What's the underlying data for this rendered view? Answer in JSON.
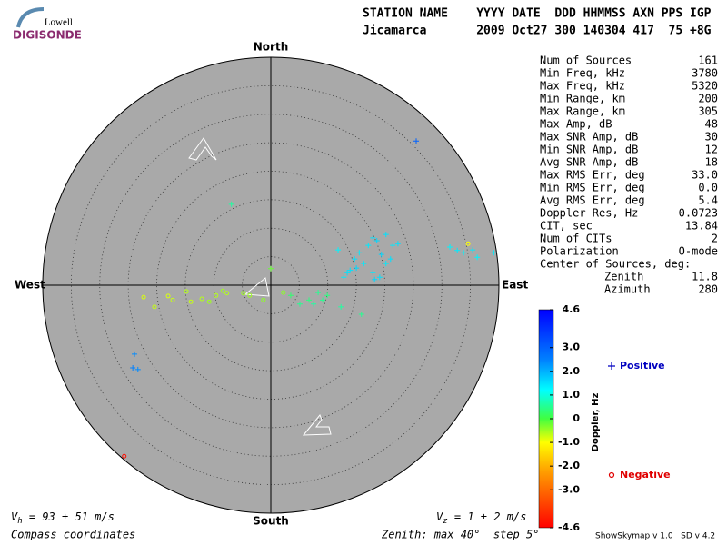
{
  "chart_data": {
    "type": "skymap",
    "logo": {
      "top": "Lowell",
      "bottom": "DIGISONDE"
    },
    "header": [
      "STATION NAME    YYYY DATE  DDD HHMMSS AXN PPS IGP",
      "Jicamarca       2009 Oct27 300 140304 417  75 +8G"
    ],
    "directions": {
      "north": "North",
      "south": "South",
      "west": "West",
      "east": "East"
    },
    "zenith_max": 40,
    "zenith_step": 5,
    "background": "#a9a9a9",
    "stats": [
      [
        "Num of Sources",
        "161"
      ],
      [
        "Min Freq, kHz",
        "3780"
      ],
      [
        "Max Freq, kHz",
        "5320"
      ],
      [
        "Min Range, km",
        "200"
      ],
      [
        "Max Range, km",
        "305"
      ],
      [
        "Max Amp, dB",
        "48"
      ],
      [
        "Max SNR Amp, dB",
        "30"
      ],
      [
        "Min SNR Amp, dB",
        "12"
      ],
      [
        "Avg SNR Amp, dB",
        "18"
      ],
      [
        "Max RMS Err, deg",
        "33.0"
      ],
      [
        "Min RMS Err, deg",
        "0.0"
      ],
      [
        "Avg RMS Err, deg",
        "5.4"
      ],
      [
        "Doppler Res, Hz",
        "0.0723"
      ],
      [
        "CIT, sec",
        "13.84"
      ],
      [
        "Num of CITs",
        "2"
      ],
      [
        "Polarization",
        "O-mode"
      ]
    ],
    "center": {
      "label": "Center of Sources, deg:",
      "rows": [
        [
          "Zenith",
          "11.8"
        ],
        [
          "Azimuth",
          "280"
        ]
      ]
    },
    "colorbar": {
      "label": "Doppler, Hz",
      "lim": [
        -4.6,
        4.6
      ],
      "ticks": [
        4.6,
        {
          "value": 3,
          "label": "3.0"
        },
        {
          "value": 2,
          "label": "2.0"
        },
        {
          "value": 1,
          "label": "1.0"
        },
        0,
        {
          "value": -1,
          "label": "-1.0"
        },
        {
          "value": -2,
          "label": "-2.0"
        },
        {
          "value": -3,
          "label": "-3.0"
        },
        -4.6
      ],
      "colormap": [
        {
          "value": 4.6,
          "color": "#0000ff"
        },
        {
          "value": 2.5,
          "color": "#0080ff"
        },
        {
          "value": 1.2,
          "color": "#00ffff"
        },
        {
          "value": 0,
          "color": "#40ff40"
        },
        {
          "value": -1,
          "color": "#ffff00"
        },
        {
          "value": -2.2,
          "color": "#ffa000"
        },
        {
          "value": -4.6,
          "color": "#ff0000"
        }
      ]
    },
    "series": [
      {
        "name": "Positive",
        "marker": "plus",
        "color": "#0000c0",
        "x": [
          25.5,
          -6.9,
          0,
          17.9,
          17.1,
          18.6,
          20.2,
          21.4,
          22.3,
          19.4,
          15.5,
          14.7,
          16.3,
          13.9,
          15.0,
          12.8,
          13.4,
          17.9,
          19.1,
          18.2,
          20.2,
          21.0,
          11.8,
          31.4,
          32.7,
          33.8,
          35.4,
          36.2,
          39.1,
          5.1,
          6.7,
          7.5,
          9.1,
          9.9,
          12.3,
          15.9,
          3.5,
          8.3,
          -23.9,
          -24.2,
          -23.3
        ],
        "y": [
          25.3,
          14.2,
          2.9,
          8.3,
          7.0,
          7.8,
          8.9,
          7.0,
          7.3,
          5.4,
          5.7,
          4.6,
          3.8,
          2.6,
          3.0,
          1.4,
          2.2,
          2.2,
          1.4,
          1.0,
          3.8,
          4.6,
          6.2,
          6.7,
          6.1,
          5.7,
          6.2,
          4.9,
          5.7,
          -3.3,
          -2.6,
          -3.3,
          -2.6,
          -1.8,
          -3.8,
          -5.1,
          -1.8,
          -1.3,
          -12.1,
          -14.5,
          -14.8
        ],
        "doppler": [
          3.0,
          0.6,
          -0.2,
          1.5,
          1.4,
          1.6,
          1.5,
          1.4,
          1.5,
          1.6,
          1.4,
          1.5,
          1.4,
          1.5,
          1.6,
          1.4,
          1.5,
          1.4,
          1.5,
          1.6,
          1.4,
          1.5,
          1.3,
          1.3,
          1.4,
          1.3,
          1.4,
          1.3,
          1.4,
          0.5,
          0.4,
          0.6,
          0.5,
          0.4,
          0.6,
          0.5,
          0.3,
          0.5,
          2.4,
          2.5,
          2.4
        ]
      },
      {
        "name": "Negative",
        "marker": "circle",
        "color": "#e00000",
        "x": [
          -22.3,
          -20.4,
          -18.0,
          -17.2,
          -14.8,
          -14.0,
          -12.1,
          -10.8,
          -9.6,
          -8.4,
          -7.7,
          -3.7,
          -1.3,
          2.2,
          -4.8,
          34.6,
          -25.7
        ],
        "y": [
          -2.1,
          -3.8,
          -1.9,
          -2.6,
          -1.1,
          -2.9,
          -2.4,
          -2.9,
          -1.8,
          -1.0,
          -1.4,
          -1.8,
          -2.6,
          -1.3,
          -1.4,
          7.3,
          -30.0
        ],
        "doppler": [
          -0.8,
          -0.7,
          -0.8,
          -0.7,
          -0.6,
          -0.7,
          -0.6,
          -0.5,
          -0.6,
          -0.5,
          -0.6,
          -0.5,
          -0.4,
          -0.4,
          -0.5,
          -1.0,
          -4.4
        ]
      }
    ],
    "vh": [
      "V",
      "h",
      " = 93 ± 51 m/s"
    ],
    "vz": [
      "V",
      "z",
      " = 1 ± 2 m/s"
    ],
    "coordinates": "Compass coordinates",
    "zenith_label": "Zenith: max 40°  step 5°",
    "version": "ShowSkymap v 1.0   SD v 4.2"
  }
}
